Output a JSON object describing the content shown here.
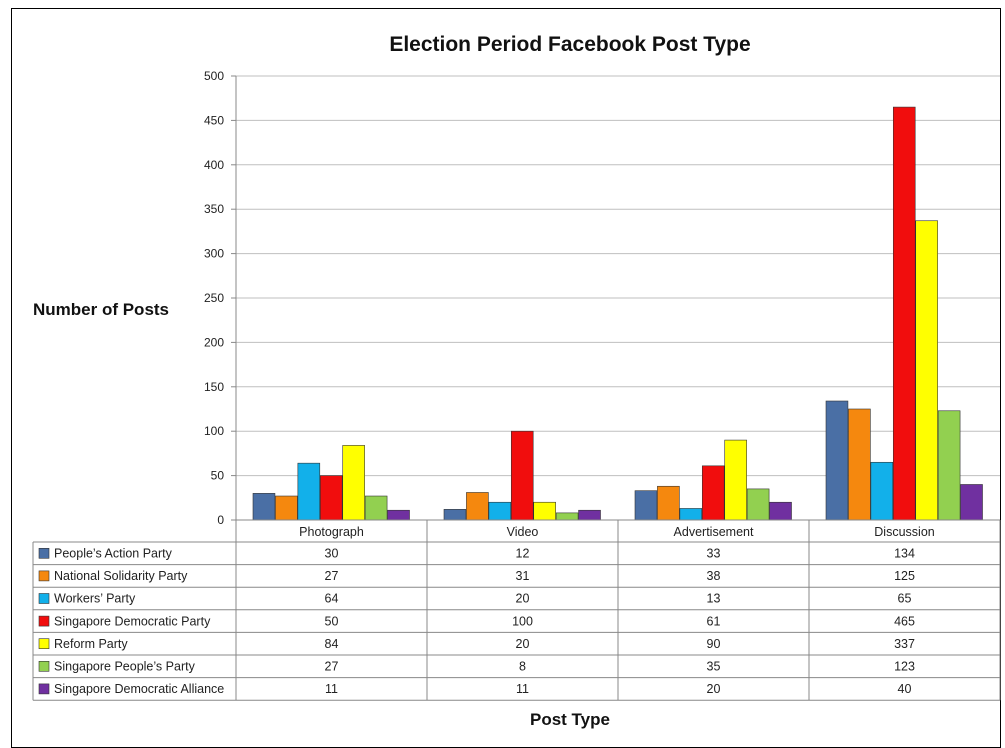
{
  "chart_data": {
    "type": "bar",
    "title": "Election Period Facebook Post Type",
    "xlabel": "Post Type",
    "ylabel": "Number of Posts",
    "ylim": [
      0,
      500
    ],
    "yticks": [
      0,
      50,
      100,
      150,
      200,
      250,
      300,
      350,
      400,
      450,
      500
    ],
    "grid": true,
    "legend": "data-table",
    "categories": [
      "Photograph",
      "Video",
      "Advertisement",
      "Discussion"
    ],
    "series": [
      {
        "name": "People’s Action Party",
        "color": "#4a6fa5",
        "values": [
          30,
          12,
          33,
          134
        ]
      },
      {
        "name": "National Solidarity Party",
        "color": "#f5880e",
        "values": [
          27,
          31,
          38,
          125
        ]
      },
      {
        "name": "Workers’ Party",
        "color": "#12b0ea",
        "values": [
          64,
          20,
          13,
          65
        ]
      },
      {
        "name": "Singapore Democratic Party",
        "color": "#f10d0d",
        "values": [
          50,
          100,
          61,
          465
        ]
      },
      {
        "name": "Reform Party",
        "color": "#ffff00",
        "values": [
          84,
          20,
          90,
          337
        ]
      },
      {
        "name": "Singapore People’s Party",
        "color": "#92d050",
        "values": [
          27,
          8,
          35,
          123
        ]
      },
      {
        "name": "Singapore Democratic Alliance",
        "color": "#7030a0",
        "values": [
          11,
          11,
          20,
          40
        ]
      }
    ]
  }
}
